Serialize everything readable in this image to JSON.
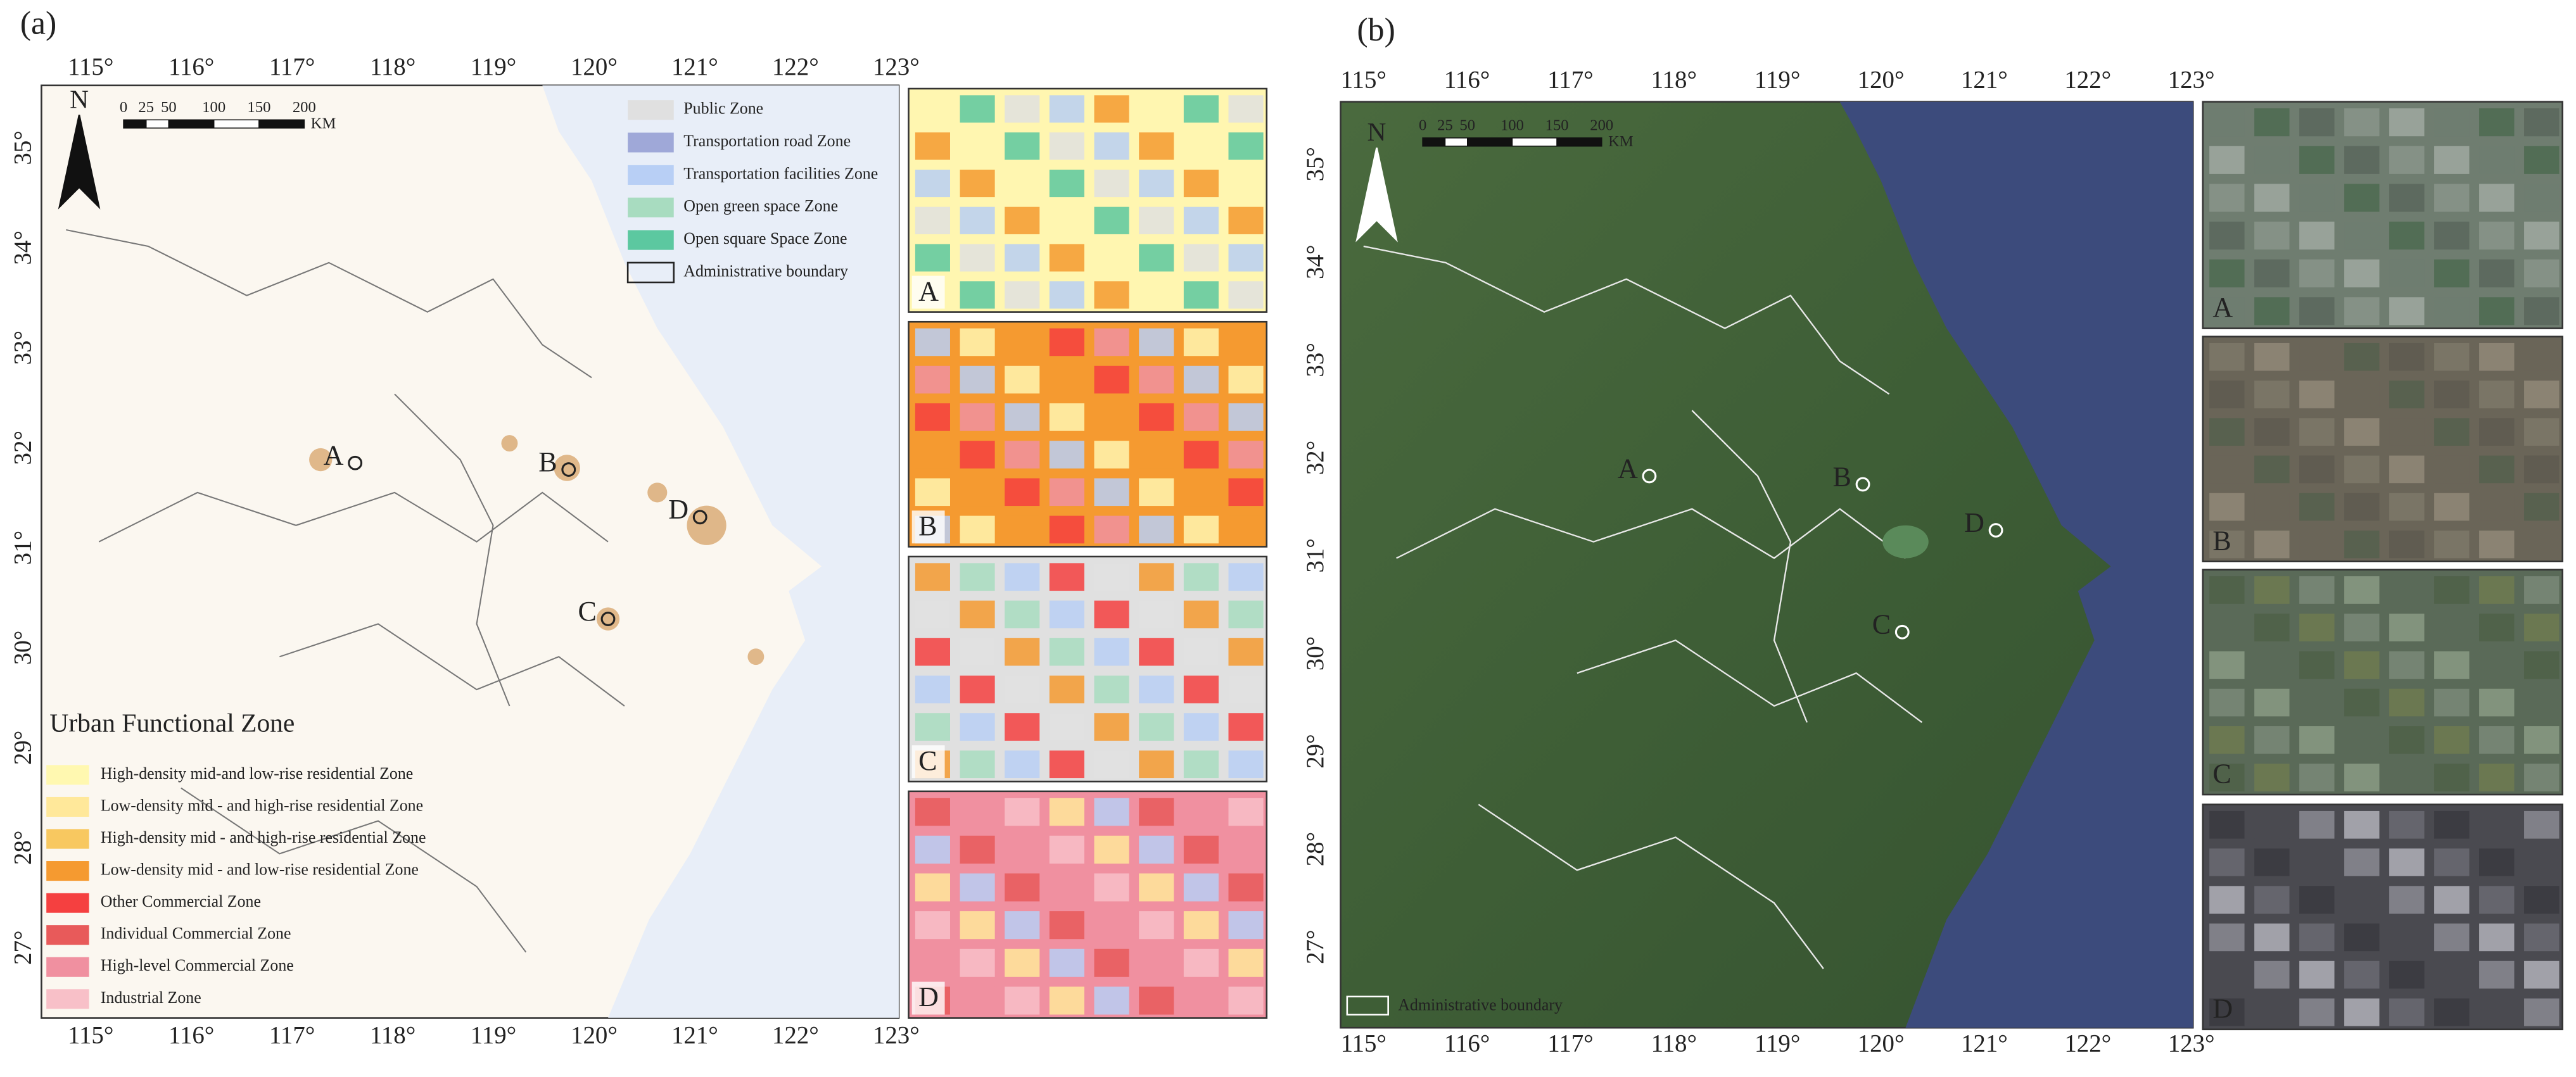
{
  "panel_a": {
    "label": "(a)",
    "x_ticks": [
      "115°",
      "116°",
      "117°",
      "118°",
      "119°",
      "120°",
      "121°",
      "122°",
      "123°"
    ],
    "y_ticks": [
      "35°",
      "34°",
      "33°",
      "32°",
      "31°",
      "30°",
      "29°",
      "28°",
      "27°"
    ],
    "north": "N",
    "scale_bar": {
      "labels": [
        "0",
        "25",
        "50",
        "100",
        "150",
        "200"
      ],
      "unit": "KM"
    },
    "legend_top": [
      "Public Zone",
      "Transportation road Zone",
      "Transportation facilities Zone",
      "Open green space Zone",
      "Open square Space Zone",
      "Administrative boundary"
    ],
    "legend_title": "Urban Functional Zone",
    "legend_bottom": [
      "High-density mid-and low-rise residential Zone",
      "Low-density mid - and high-rise residential Zone",
      "High-density mid - and high-rise residential Zone",
      "Low-density mid - and low-rise residential Zone",
      "Other Commercial Zone",
      "Individual Commercial Zone",
      "High-level Commercial Zone",
      "Industrial Zone"
    ],
    "points": [
      "A",
      "B",
      "C",
      "D"
    ],
    "insets": [
      "A",
      "B",
      "C",
      "D"
    ]
  },
  "panel_b": {
    "label": "(b)",
    "x_ticks": [
      "115°",
      "116°",
      "117°",
      "118°",
      "119°",
      "120°",
      "121°",
      "122°",
      "123°"
    ],
    "y_ticks": [
      "35°",
      "34°",
      "33°",
      "32°",
      "31°",
      "30°",
      "29°",
      "28°",
      "27°"
    ],
    "north": "N",
    "scale_bar": {
      "labels": [
        "0",
        "25",
        "50",
        "100",
        "150",
        "200"
      ],
      "unit": "KM"
    },
    "legend": "Administrative boundary",
    "points": [
      "A",
      "B",
      "C",
      "D"
    ],
    "insets": [
      "A",
      "B",
      "C",
      "D"
    ]
  }
}
